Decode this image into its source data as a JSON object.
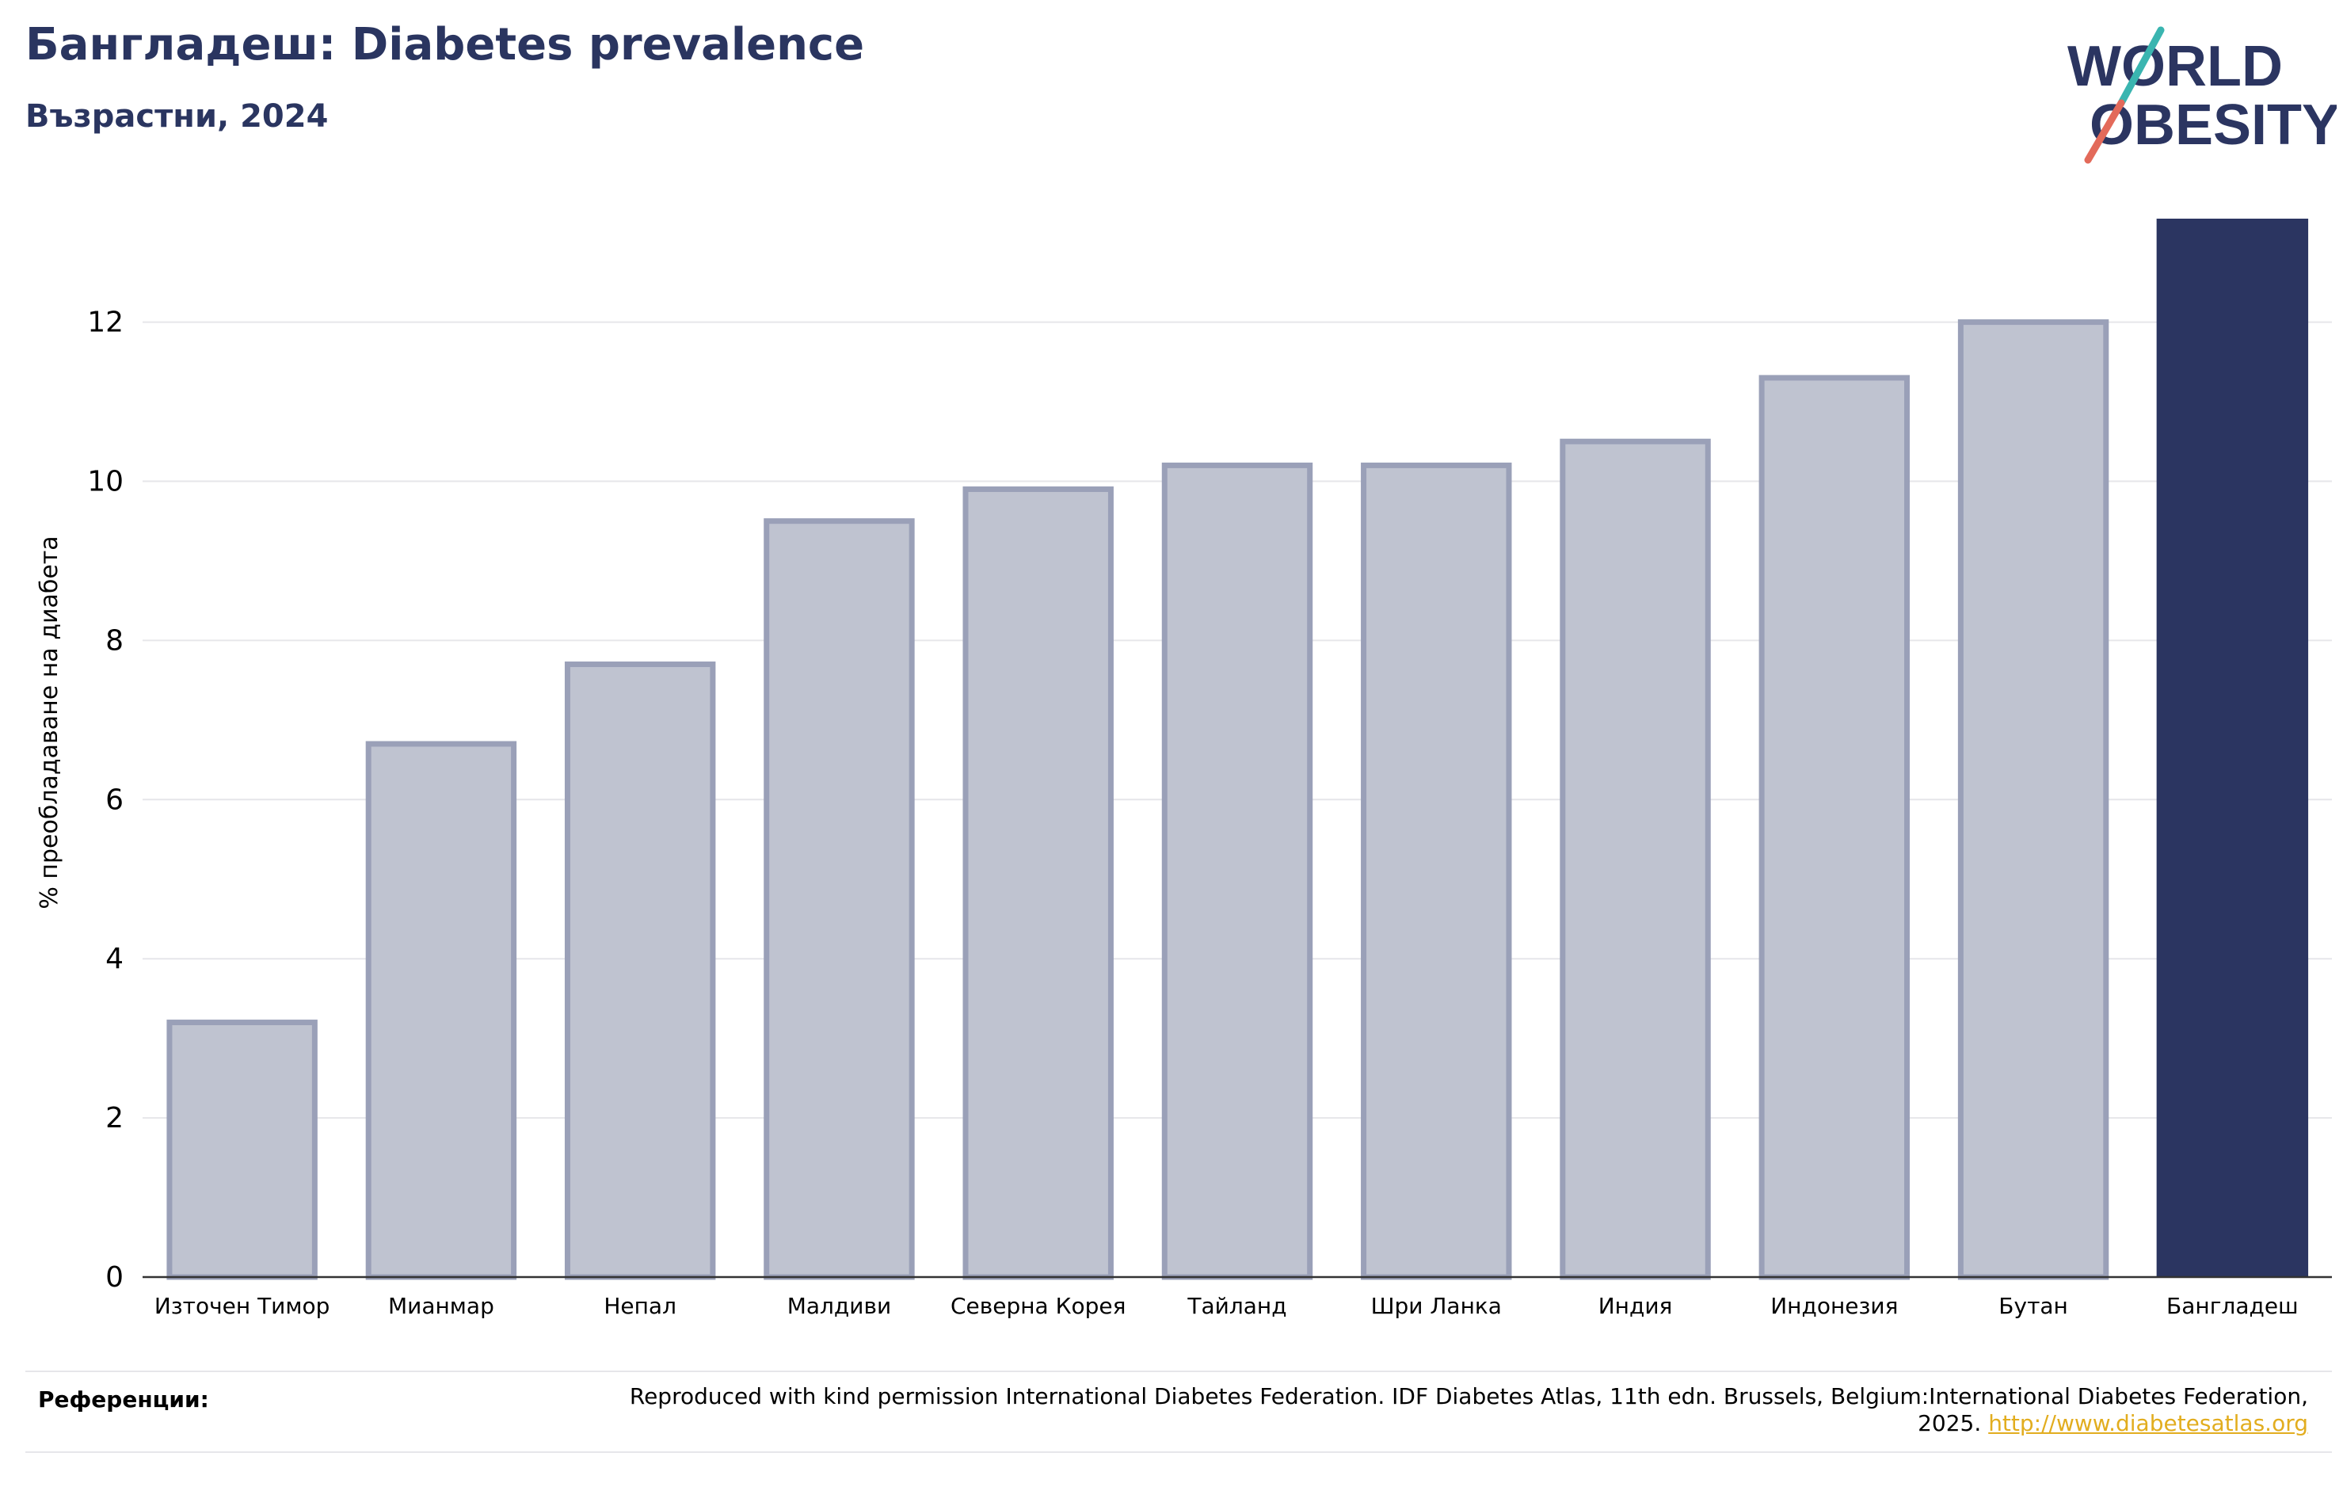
{
  "header": {
    "title": "Бангладеш: Diabetes prevalence",
    "subtitle": "Възрастни, 2024"
  },
  "logo": {
    "line1": "WORLD",
    "line2": "OBESITY"
  },
  "chart_data": {
    "type": "bar",
    "title": "Бангладеш: Diabetes prevalence",
    "subtitle": "Възрастни, 2024",
    "ylabel": "% преобладаване на диабета",
    "xlabel": "",
    "ylim": [
      0,
      13.3
    ],
    "yticks": [
      0,
      2,
      4,
      6,
      8,
      10,
      12
    ],
    "grid": true,
    "categories": [
      "Източен Тимор",
      "Мианмар",
      "Непал",
      "Малдиви",
      "Северна Корея",
      "Тайланд",
      "Шри Ланка",
      "Индия",
      "Индонезия",
      "Бутан",
      "Бангладеш"
    ],
    "values": [
      3.2,
      6.7,
      7.7,
      9.5,
      9.9,
      10.2,
      10.2,
      10.5,
      11.3,
      12.0,
      13.3
    ],
    "highlight": "Бангладеш",
    "colors": {
      "bar": "#bfc3d0",
      "bar_edge": "#9aa0b8",
      "highlight": "#2b3561",
      "grid": "#e6e6ea",
      "axis": "#333333"
    }
  },
  "references": {
    "label": "Референции:",
    "text": "Reproduced with kind permission International Diabetes Federation. IDF Diabetes Atlas, 11th edn. Brussels, Belgium:International Diabetes Federation, 2025.",
    "link": "http://www.diabetesatlas.org"
  }
}
